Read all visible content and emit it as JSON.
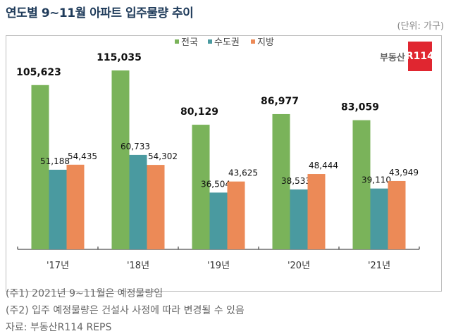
{
  "header": {
    "title": "연도별 9~11월 아파트 입주물량 추이",
    "unit": "(단위: 가구)"
  },
  "logo": {
    "text": "부동산",
    "badge": "R114"
  },
  "notes": [
    "(주1) 2021년 9~11월은 예정물량임",
    "(주2) 입주 예정물량은 건설사 사정에 따라 변경될 수 있음",
    "자료: 부동산R114 REPS"
  ],
  "chart_data": {
    "type": "bar",
    "title": "연도별 9~11월 아파트 입주물량 추이",
    "categories": [
      "'17년",
      "'18년",
      "'19년",
      "'20년",
      "'21년"
    ],
    "series": [
      {
        "name": "전국",
        "color": "#7ab35a",
        "values": [
          105623,
          115035,
          80129,
          86977,
          83059
        ],
        "labels": [
          "105,623",
          "115,035",
          "80,129",
          "86,977",
          "83,059"
        ]
      },
      {
        "name": "수도권",
        "color": "#4a9aa0",
        "values": [
          51188,
          60733,
          36504,
          38533,
          39110
        ],
        "labels": [
          "51,188",
          "60,733",
          "36,504",
          "38,533",
          "39,110"
        ]
      },
      {
        "name": "지방",
        "color": "#ec8a57",
        "values": [
          54435,
          54302,
          43625,
          48444,
          43949
        ],
        "labels": [
          "54,435",
          "54,302",
          "43,625",
          "48,444",
          "43,949"
        ]
      }
    ],
    "ylim": [
      0,
      130000
    ],
    "grid": false,
    "legend": "top-center"
  }
}
